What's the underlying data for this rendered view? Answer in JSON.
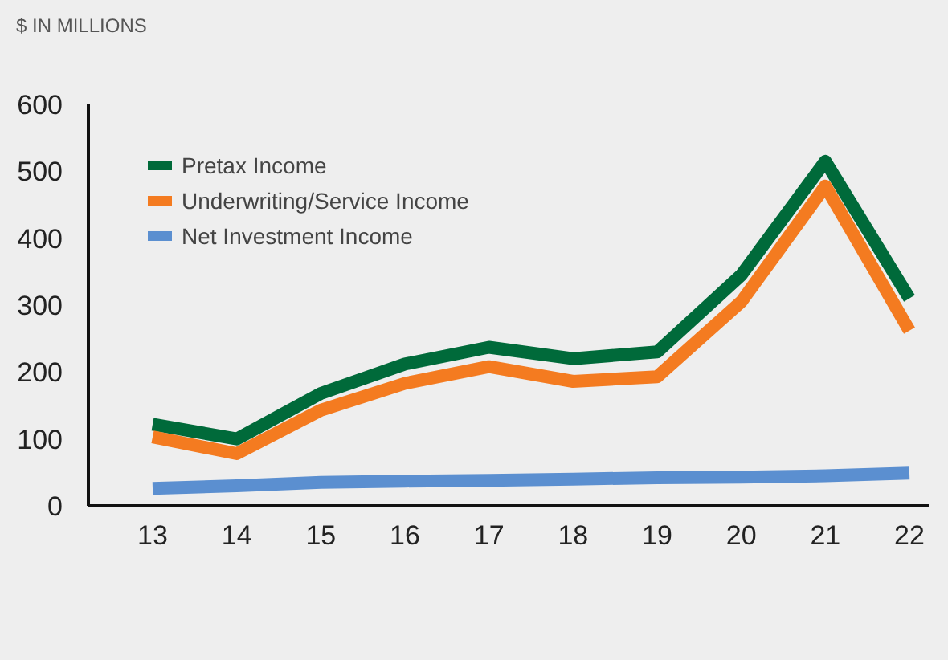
{
  "chart_data": {
    "type": "line",
    "title": "$ IN MILLIONS",
    "categories": [
      "13",
      "14",
      "15",
      "16",
      "17",
      "18",
      "19",
      "20",
      "21",
      "22"
    ],
    "series": [
      {
        "name": "Pretax Income",
        "color": "#006a3a",
        "values": [
          122,
          100,
          168,
          212,
          237,
          220,
          230,
          345,
          515,
          310
        ]
      },
      {
        "name": "Underwriting/Service Income",
        "color": "#f47b20",
        "values": [
          103,
          78,
          143,
          183,
          208,
          186,
          193,
          305,
          478,
          262
        ]
      },
      {
        "name": "Net Investment Income",
        "color": "#5b8fd0",
        "values": [
          26,
          30,
          35,
          37,
          38,
          40,
          42,
          43,
          45,
          49
        ]
      }
    ],
    "ylim": [
      0,
      600
    ],
    "yticks": [
      0,
      100,
      200,
      300,
      400,
      500,
      600
    ],
    "grid": false,
    "legend": "top left",
    "marker": "none",
    "line_style": "solid"
  }
}
